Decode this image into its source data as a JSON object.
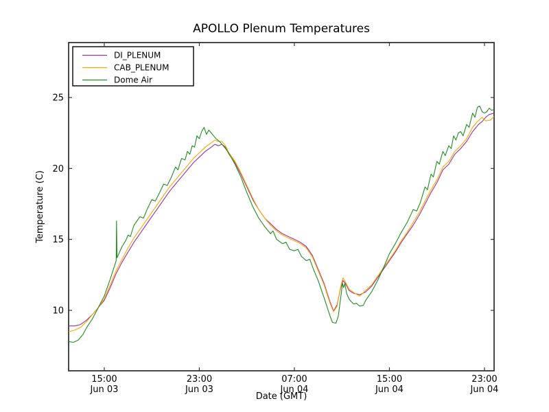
{
  "figure": {
    "background": "#ffffff",
    "frame_color": "#333333"
  },
  "chart_data": {
    "type": "line",
    "title": "APOLLO Plenum Temperatures",
    "xlabel": "Date (GMT)",
    "ylabel": "Temperature (C)",
    "grid": false,
    "x_unit": "hours since Jun 03 00:00 GMT",
    "xlim": [
      12.0,
      47.81
    ],
    "ylim": [
      5.74,
      28.87
    ],
    "y_ticks": [
      10,
      15,
      20,
      25
    ],
    "x_ticks": [
      {
        "value": 15,
        "time": "15:00",
        "date": "Jun 03"
      },
      {
        "value": 23,
        "time": "23:00",
        "date": "Jun 03"
      },
      {
        "value": 31,
        "time": "07:00",
        "date": "Jun 04"
      },
      {
        "value": 39,
        "time": "15:00",
        "date": "Jun 04"
      },
      {
        "value": 47,
        "time": "23:00",
        "date": "Jun 04"
      }
    ],
    "legend": {
      "position": "upper left"
    },
    "series": [
      {
        "name": "DI_PLENUM",
        "color": "#993399",
        "points": [
          [
            12,
            8.9
          ],
          [
            12.5,
            8.9
          ],
          [
            13,
            9.0
          ],
          [
            13.5,
            9.3
          ],
          [
            14,
            9.7
          ],
          [
            14.5,
            10.2
          ],
          [
            15,
            10.7
          ],
          [
            15.5,
            11.6
          ],
          [
            16,
            12.6
          ],
          [
            16.5,
            13.4
          ],
          [
            17,
            14.1
          ],
          [
            17.5,
            14.8
          ],
          [
            18,
            15.4
          ],
          [
            18.5,
            16.0
          ],
          [
            19,
            16.6
          ],
          [
            19.5,
            17.2
          ],
          [
            20,
            17.8
          ],
          [
            20.5,
            18.4
          ],
          [
            21,
            18.9
          ],
          [
            21.5,
            19.4
          ],
          [
            22,
            19.9
          ],
          [
            22.5,
            20.4
          ],
          [
            23,
            20.8
          ],
          [
            23.5,
            21.2
          ],
          [
            24,
            21.5
          ],
          [
            24.3,
            21.7
          ],
          [
            24.6,
            21.6
          ],
          [
            24.9,
            21.7
          ],
          [
            25.2,
            21.5
          ],
          [
            25.5,
            21.0
          ],
          [
            26,
            20.4
          ],
          [
            26.5,
            19.6
          ],
          [
            27,
            18.7
          ],
          [
            27.5,
            17.8
          ],
          [
            28,
            17.1
          ],
          [
            28.5,
            16.5
          ],
          [
            29,
            16.1
          ],
          [
            29.5,
            15.7
          ],
          [
            30,
            15.4
          ],
          [
            30.5,
            15.2
          ],
          [
            31,
            15.0
          ],
          [
            31.5,
            14.8
          ],
          [
            32,
            14.5
          ],
          [
            32.5,
            13.9
          ],
          [
            33,
            12.9
          ],
          [
            33.5,
            11.9
          ],
          [
            34,
            10.6
          ],
          [
            34.3,
            9.95
          ],
          [
            34.6,
            10.4
          ],
          [
            34.9,
            11.6
          ],
          [
            35.1,
            12.1
          ],
          [
            35.3,
            11.9
          ],
          [
            35.6,
            11.4
          ],
          [
            36,
            11.2
          ],
          [
            36.5,
            11.1
          ],
          [
            37,
            11.3
          ],
          [
            37.5,
            11.7
          ],
          [
            38,
            12.3
          ],
          [
            38.5,
            12.9
          ],
          [
            39,
            13.5
          ],
          [
            39.5,
            14.1
          ],
          [
            40,
            14.8
          ],
          [
            40.5,
            15.4
          ],
          [
            41,
            16.0
          ],
          [
            41.5,
            16.7
          ],
          [
            42,
            17.5
          ],
          [
            42.5,
            18.3
          ],
          [
            43,
            19.0
          ],
          [
            43.5,
            19.9
          ],
          [
            44,
            20.3
          ],
          [
            44.5,
            21.0
          ],
          [
            45,
            21.4
          ],
          [
            45.5,
            21.9
          ],
          [
            46,
            22.6
          ],
          [
            46.5,
            23.1
          ],
          [
            46.8,
            23.3
          ],
          [
            47.1,
            23.6
          ],
          [
            47.4,
            23.8
          ],
          [
            47.8,
            23.9
          ]
        ]
      },
      {
        "name": "CAB_PLENUM",
        "color": "#FFA500",
        "points": [
          [
            12,
            8.5
          ],
          [
            12.5,
            8.6
          ],
          [
            13,
            8.8
          ],
          [
            13.5,
            9.2
          ],
          [
            14,
            9.7
          ],
          [
            14.5,
            10.2
          ],
          [
            15,
            10.8
          ],
          [
            15.5,
            11.8
          ],
          [
            16,
            12.8
          ],
          [
            16.5,
            13.6
          ],
          [
            17,
            14.4
          ],
          [
            17.5,
            15.1
          ],
          [
            18,
            15.7
          ],
          [
            18.5,
            16.3
          ],
          [
            19,
            16.9
          ],
          [
            19.5,
            17.5
          ],
          [
            20,
            18.1
          ],
          [
            20.5,
            18.7
          ],
          [
            21,
            19.2
          ],
          [
            21.5,
            19.7
          ],
          [
            22,
            20.2
          ],
          [
            22.5,
            20.7
          ],
          [
            23,
            21.1
          ],
          [
            23.5,
            21.5
          ],
          [
            24,
            21.8
          ],
          [
            24.3,
            22.0
          ],
          [
            24.6,
            21.9
          ],
          [
            24.9,
            21.9
          ],
          [
            25.2,
            21.6
          ],
          [
            25.5,
            21.1
          ],
          [
            26,
            20.5
          ],
          [
            26.5,
            19.7
          ],
          [
            27,
            18.8
          ],
          [
            27.5,
            17.9
          ],
          [
            28,
            17.1
          ],
          [
            28.5,
            16.5
          ],
          [
            29,
            16.0
          ],
          [
            29.5,
            15.6
          ],
          [
            30,
            15.3
          ],
          [
            30.5,
            15.1
          ],
          [
            31,
            14.9
          ],
          [
            31.5,
            14.7
          ],
          [
            32,
            14.4
          ],
          [
            32.5,
            13.8
          ],
          [
            33,
            12.8
          ],
          [
            33.5,
            11.8
          ],
          [
            34,
            10.5
          ],
          [
            34.3,
            9.9
          ],
          [
            34.6,
            10.3
          ],
          [
            34.9,
            11.7
          ],
          [
            35.1,
            12.3
          ],
          [
            35.3,
            12.0
          ],
          [
            35.6,
            11.5
          ],
          [
            36,
            11.25
          ],
          [
            36.5,
            11.0
          ],
          [
            37,
            11.4
          ],
          [
            37.5,
            11.8
          ],
          [
            38,
            12.4
          ],
          [
            38.5,
            13.0
          ],
          [
            39,
            13.6
          ],
          [
            39.5,
            14.2
          ],
          [
            40,
            14.9
          ],
          [
            40.5,
            15.5
          ],
          [
            41,
            16.2
          ],
          [
            41.5,
            16.9
          ],
          [
            42,
            17.7
          ],
          [
            42.5,
            18.5
          ],
          [
            43,
            19.2
          ],
          [
            43.5,
            20.1
          ],
          [
            44,
            20.5
          ],
          [
            44.5,
            21.2
          ],
          [
            45,
            21.6
          ],
          [
            45.5,
            22.1
          ],
          [
            46,
            22.9
          ],
          [
            46.4,
            23.3
          ],
          [
            46.8,
            23.6
          ],
          [
            47.1,
            23.35
          ],
          [
            47.5,
            23.4
          ],
          [
            47.8,
            23.65
          ]
        ]
      },
      {
        "name": "Dome Air",
        "color": "#1E8C1E",
        "points": [
          [
            12,
            7.8
          ],
          [
            12.4,
            7.75
          ],
          [
            12.8,
            7.9
          ],
          [
            13.2,
            8.3
          ],
          [
            13.6,
            8.9
          ],
          [
            14,
            9.4
          ],
          [
            14.5,
            10.2
          ],
          [
            15,
            11.0
          ],
          [
            15.5,
            12.2
          ],
          [
            16,
            13.5
          ],
          [
            16.03,
            16.3
          ],
          [
            16.07,
            13.7
          ],
          [
            16.5,
            14.5
          ],
          [
            16.8,
            14.9
          ],
          [
            17,
            15.3
          ],
          [
            17.2,
            15.2
          ],
          [
            17.5,
            16.0
          ],
          [
            18,
            16.6
          ],
          [
            18.3,
            16.5
          ],
          [
            18.6,
            17.1
          ],
          [
            19,
            17.8
          ],
          [
            19.3,
            17.7
          ],
          [
            19.6,
            18.2
          ],
          [
            20,
            18.9
          ],
          [
            20.3,
            18.8
          ],
          [
            20.6,
            19.3
          ],
          [
            21,
            20.1
          ],
          [
            21.2,
            19.9
          ],
          [
            21.5,
            20.7
          ],
          [
            21.8,
            20.6
          ],
          [
            22,
            21.2
          ],
          [
            22.2,
            21.0
          ],
          [
            22.4,
            21.6
          ],
          [
            22.6,
            21.5
          ],
          [
            22.8,
            22.3
          ],
          [
            23,
            22.1
          ],
          [
            23.2,
            22.6
          ],
          [
            23.4,
            22.9
          ],
          [
            23.6,
            22.4
          ],
          [
            23.8,
            22.7
          ],
          [
            24,
            22.5
          ],
          [
            24.2,
            22.3
          ],
          [
            24.4,
            22.1
          ],
          [
            24.7,
            21.9
          ],
          [
            25,
            21.6
          ],
          [
            25.3,
            21.3
          ],
          [
            25.6,
            20.9
          ],
          [
            26,
            20.3
          ],
          [
            26.5,
            19.4
          ],
          [
            27,
            18.3
          ],
          [
            27.5,
            17.3
          ],
          [
            28,
            16.5
          ],
          [
            28.5,
            15.9
          ],
          [
            29,
            15.4
          ],
          [
            29.2,
            15.6
          ],
          [
            29.5,
            15.0
          ],
          [
            30,
            14.7
          ],
          [
            30.3,
            14.8
          ],
          [
            30.6,
            14.3
          ],
          [
            31,
            14.2
          ],
          [
            31.3,
            14.3
          ],
          [
            31.6,
            13.8
          ],
          [
            32,
            13.5
          ],
          [
            32.3,
            13.6
          ],
          [
            32.6,
            12.9
          ],
          [
            33,
            12.1
          ],
          [
            33.5,
            10.9
          ],
          [
            34,
            9.6
          ],
          [
            34.2,
            9.15
          ],
          [
            34.5,
            9.1
          ],
          [
            34.7,
            9.6
          ],
          [
            34.9,
            10.9
          ],
          [
            35.05,
            11.9
          ],
          [
            35.15,
            11.6
          ],
          [
            35.25,
            11.9
          ],
          [
            35.4,
            11.2
          ],
          [
            35.6,
            10.8
          ],
          [
            35.8,
            10.6
          ],
          [
            36,
            10.45
          ],
          [
            36.2,
            10.5
          ],
          [
            36.5,
            10.3
          ],
          [
            36.8,
            10.35
          ],
          [
            37,
            10.7
          ],
          [
            37.5,
            11.3
          ],
          [
            38,
            12.1
          ],
          [
            38.5,
            13.0
          ],
          [
            39,
            14.0
          ],
          [
            39.5,
            14.7
          ],
          [
            40,
            15.5
          ],
          [
            40.5,
            16.2
          ],
          [
            41,
            17.1
          ],
          [
            41.3,
            17.0
          ],
          [
            41.6,
            17.6
          ],
          [
            42,
            18.7
          ],
          [
            42.2,
            18.5
          ],
          [
            42.5,
            19.6
          ],
          [
            42.7,
            19.4
          ],
          [
            43,
            20.5
          ],
          [
            43.2,
            20.3
          ],
          [
            43.5,
            21.2
          ],
          [
            43.7,
            20.9
          ],
          [
            44,
            21.6
          ],
          [
            44.2,
            21.4
          ],
          [
            44.4,
            22.3
          ],
          [
            44.6,
            22.0
          ],
          [
            44.8,
            22.5
          ],
          [
            45,
            22.6
          ],
          [
            45.2,
            22.3
          ],
          [
            45.5,
            23.1
          ],
          [
            45.7,
            22.9
          ],
          [
            46,
            23.9
          ],
          [
            46.2,
            23.6
          ],
          [
            46.4,
            24.3
          ],
          [
            46.6,
            24.4
          ],
          [
            46.8,
            24.0
          ],
          [
            47,
            23.9
          ],
          [
            47.2,
            24.0
          ],
          [
            47.4,
            24.25
          ],
          [
            47.6,
            24.1
          ],
          [
            47.8,
            24.15
          ]
        ]
      }
    ]
  }
}
